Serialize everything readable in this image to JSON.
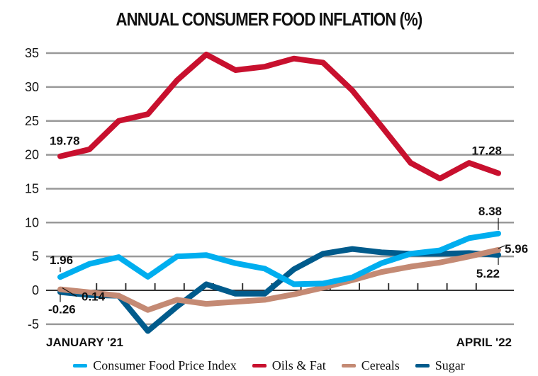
{
  "chart_data": {
    "type": "line",
    "title": "ANNUAL CONSUMER FOOD INFLATION (%)",
    "x_start_label": "JANUARY '21",
    "x_end_label": "APRIL '22",
    "ylim": [
      -5,
      35
    ],
    "yticks": [
      35,
      30,
      25,
      20,
      15,
      10,
      5,
      0,
      -5
    ],
    "grid": true,
    "legend_position": "bottom",
    "series": [
      {
        "name": "Consumer Food Price Index",
        "color": "#00aeef",
        "values": [
          1.96,
          3.9,
          4.9,
          2.0,
          5.0,
          5.2,
          4.0,
          3.2,
          0.9,
          1.0,
          1.9,
          4.0,
          5.4,
          5.9,
          7.7,
          8.38
        ],
        "start_label": "1.96",
        "end_label": "8.38"
      },
      {
        "name": "Oils & Fat",
        "color": "#c8102e",
        "values": [
          19.78,
          20.8,
          25.0,
          26.0,
          31.0,
          34.8,
          32.5,
          33.0,
          34.2,
          33.6,
          29.5,
          24.2,
          18.8,
          16.5,
          18.8,
          17.28
        ],
        "start_label": "19.78",
        "end_label": "17.28"
      },
      {
        "name": "Cereals",
        "color": "#c48a74",
        "values": [
          0.14,
          -0.3,
          -0.8,
          -2.9,
          -1.4,
          -2.0,
          -1.7,
          -1.4,
          -0.6,
          0.4,
          1.5,
          2.7,
          3.5,
          4.1,
          5.0,
          5.96
        ],
        "start_label": "0.14",
        "end_label": "5.96"
      },
      {
        "name": "Sugar",
        "color": "#005b8c",
        "values": [
          -0.26,
          -0.7,
          -0.8,
          -6.0,
          -2.4,
          0.9,
          -0.5,
          -0.5,
          3.1,
          5.4,
          6.1,
          5.6,
          5.4,
          5.4,
          5.5,
          5.22
        ],
        "start_label": "-0.26",
        "end_label": "5.22"
      }
    ]
  }
}
